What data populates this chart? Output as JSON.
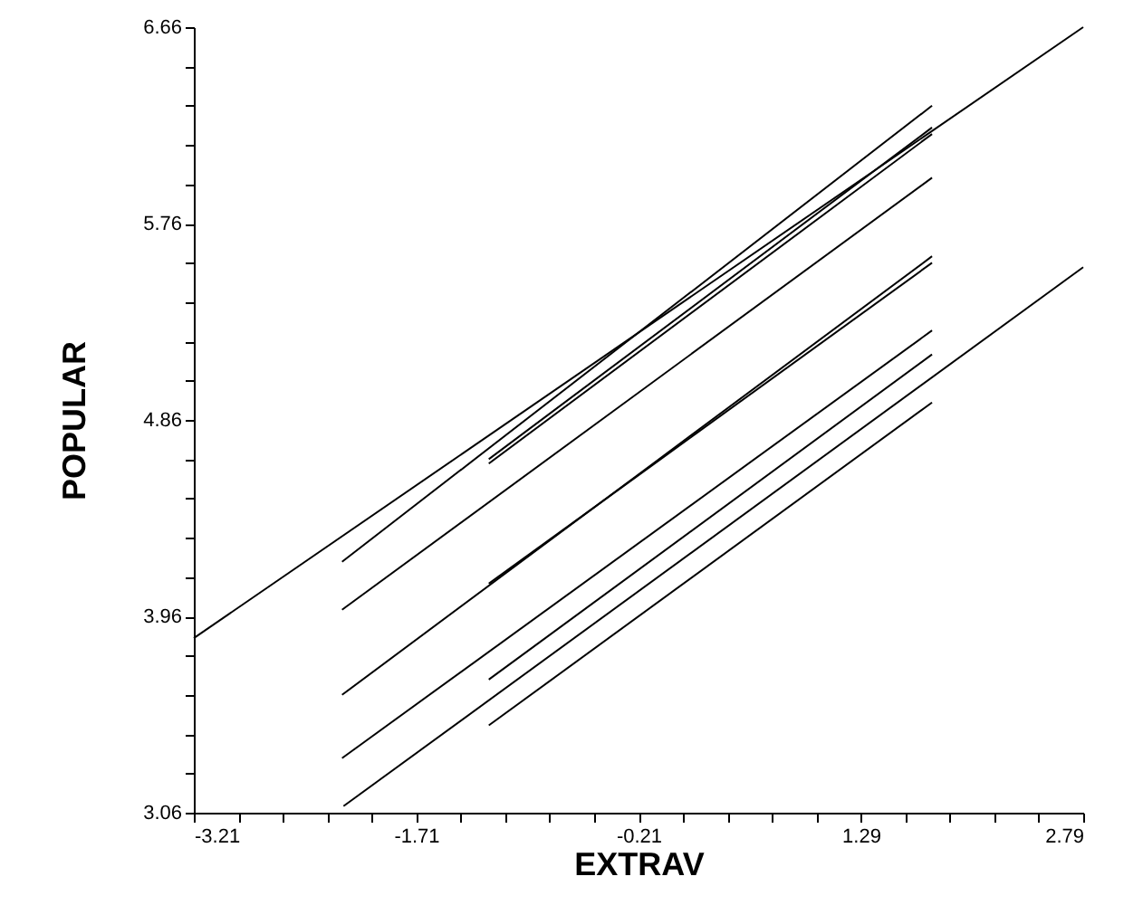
{
  "chart_data": {
    "type": "line",
    "xlabel": "EXTRAV",
    "ylabel": "POPULAR",
    "xlim": [
      -3.21,
      2.79
    ],
    "ylim": [
      3.06,
      6.66
    ],
    "xticks": [
      -3.21,
      {
        "value": -2.91,
        "label": null
      },
      {
        "value": -2.61,
        "label": null
      },
      {
        "value": -2.31,
        "label": null
      },
      {
        "value": -2.01,
        "label": null
      },
      -1.71,
      {
        "value": -1.41,
        "label": null
      },
      {
        "value": -1.11,
        "label": null
      },
      {
        "value": -0.81,
        "label": null
      },
      {
        "value": -0.51,
        "label": null
      },
      -0.21,
      {
        "value": 0.09,
        "label": null
      },
      {
        "value": 0.39,
        "label": null
      },
      {
        "value": 0.69,
        "label": null
      },
      {
        "value": 0.99,
        "label": null
      },
      1.29,
      {
        "value": 1.59,
        "label": null
      },
      {
        "value": 1.89,
        "label": null
      },
      {
        "value": 2.19,
        "label": null
      },
      {
        "value": 2.49,
        "label": null
      },
      2.79
    ],
    "yticks": [
      3.06,
      {
        "value": 3.24,
        "label": null
      },
      {
        "value": 3.42,
        "label": null
      },
      {
        "value": 3.6,
        "label": null
      },
      {
        "value": 3.78,
        "label": null
      },
      3.96,
      {
        "value": 4.14,
        "label": null
      },
      {
        "value": 4.32,
        "label": null
      },
      {
        "value": 4.5,
        "label": null
      },
      {
        "value": 4.68,
        "label": null
      },
      4.86,
      {
        "value": 5.04,
        "label": null
      },
      {
        "value": 5.22,
        "label": null
      },
      {
        "value": 5.4,
        "label": null
      },
      {
        "value": 5.58,
        "label": null
      },
      5.76,
      {
        "value": 5.94,
        "label": null
      },
      {
        "value": 6.12,
        "label": null
      },
      {
        "value": 6.3,
        "label": null
      },
      {
        "value": 6.48,
        "label": null
      },
      6.66
    ],
    "grid": false,
    "marker": "none",
    "line_style": "solid",
    "series": [
      {
        "color": "#000000",
        "x": [
          -3.21,
          2.79
        ],
        "values": [
          3.86,
          6.66
        ]
      },
      {
        "color": "#000000",
        "x": [
          -2.21,
          1.77
        ],
        "values": [
          4.21,
          6.3
        ]
      },
      {
        "color": "#000000",
        "x": [
          -1.22,
          1.77
        ],
        "values": [
          4.68,
          6.2
        ]
      },
      {
        "color": "#000000",
        "x": [
          -1.22,
          1.77
        ],
        "values": [
          4.66,
          6.17
        ]
      },
      {
        "color": "#000000",
        "x": [
          -2.21,
          1.77
        ],
        "values": [
          3.99,
          5.97
        ]
      },
      {
        "color": "#000000",
        "x": [
          -2.21,
          1.77
        ],
        "values": [
          3.6,
          5.61
        ]
      },
      {
        "color": "#000000",
        "x": [
          -1.22,
          1.77
        ],
        "values": [
          4.11,
          5.58
        ]
      },
      {
        "color": "#000000",
        "x": [
          -2.21,
          1.77
        ],
        "values": [
          3.31,
          5.27
        ]
      },
      {
        "color": "#000000",
        "x": [
          -1.22,
          1.77
        ],
        "values": [
          3.67,
          5.16
        ]
      },
      {
        "color": "#000000",
        "x": [
          -1.22,
          1.77
        ],
        "values": [
          3.46,
          4.94
        ]
      },
      {
        "color": "#000000",
        "x": [
          -2.2,
          2.79
        ],
        "values": [
          3.09,
          5.56
        ]
      }
    ]
  }
}
